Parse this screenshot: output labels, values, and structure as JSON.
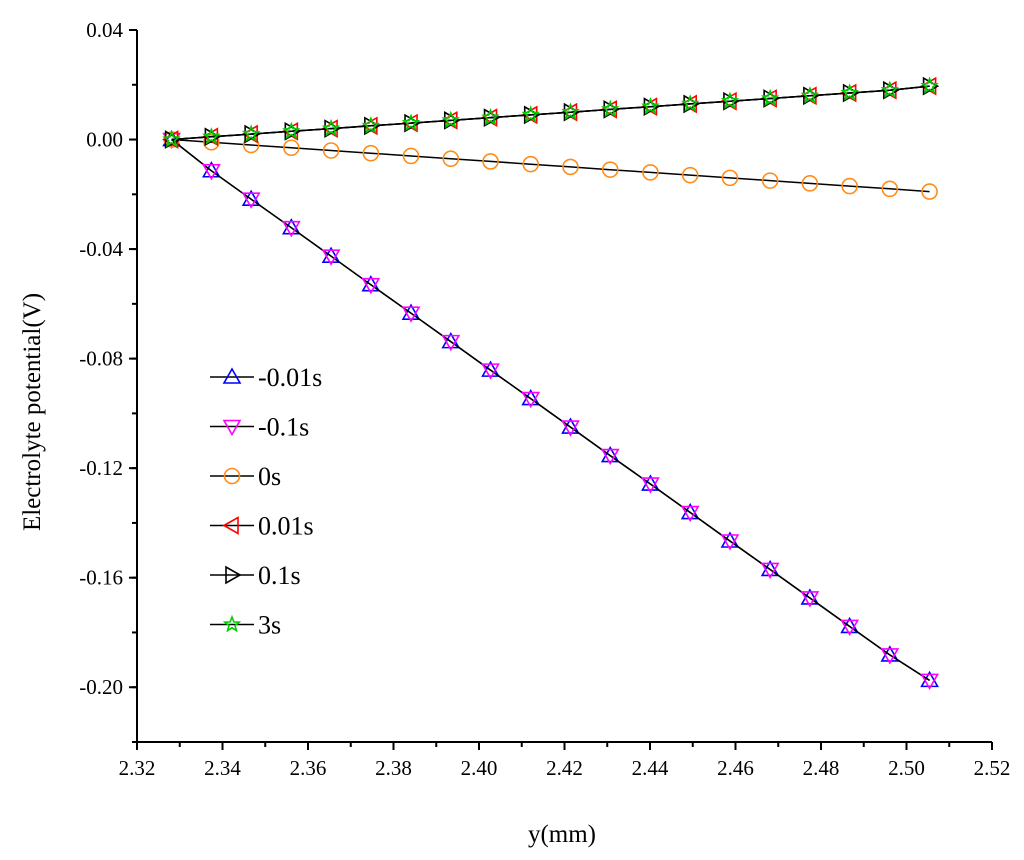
{
  "chart_data": {
    "type": "line",
    "title": "",
    "xlabel": "y(mm)",
    "ylabel": "Electrolyte potential(V)",
    "xlim": [
      2.32,
      2.52
    ],
    "ylim": [
      -0.22,
      0.04
    ],
    "xticks": [
      "2.32",
      "2.34",
      "2.36",
      "2.38",
      "2.40",
      "2.42",
      "2.44",
      "2.46",
      "2.48",
      "2.50",
      "2.52"
    ],
    "yticks": [
      "0.04",
      "0.00",
      "-0.04",
      "-0.08",
      "-0.12",
      "-0.16",
      "-0.20"
    ],
    "grid": false,
    "legend_position": "left-middle",
    "x": [
      2.3281,
      2.3374,
      2.3467,
      2.3561,
      2.3654,
      2.3747,
      2.3841,
      2.3934,
      2.4027,
      2.4121,
      2.4214,
      2.4307,
      2.4401,
      2.4494,
      2.4587,
      2.4681,
      2.4774,
      2.4867,
      2.4961,
      2.5054
    ],
    "series": [
      {
        "name": "-0.01s",
        "marker": "triangle-up",
        "color": "#0000ff",
        "values": [
          0,
          -0.0114,
          -0.0218,
          -0.0322,
          -0.0426,
          -0.053,
          -0.0634,
          -0.0738,
          -0.0842,
          -0.0946,
          -0.105,
          -0.1154,
          -0.1258,
          -0.1362,
          -0.1466,
          -0.157,
          -0.1674,
          -0.1778,
          -0.1882,
          -0.1975
        ]
      },
      {
        "name": "-0.1s",
        "marker": "triangle-down",
        "color": "#ff00ff",
        "values": [
          0,
          -0.0114,
          -0.0218,
          -0.0322,
          -0.0426,
          -0.053,
          -0.0634,
          -0.0738,
          -0.0842,
          -0.0946,
          -0.105,
          -0.1154,
          -0.1258,
          -0.1362,
          -0.1466,
          -0.157,
          -0.1674,
          -0.1778,
          -0.1882,
          -0.1975
        ]
      },
      {
        "name": "0s",
        "marker": "circle",
        "color": "#ff8c1a",
        "values": [
          0,
          -0.001,
          -0.002,
          -0.003,
          -0.004,
          -0.005,
          -0.006,
          -0.007,
          -0.008,
          -0.009,
          -0.01,
          -0.011,
          -0.012,
          -0.013,
          -0.014,
          -0.015,
          -0.016,
          -0.017,
          -0.018,
          -0.019
        ]
      },
      {
        "name": "0.01s",
        "marker": "triangle-left",
        "color": "#ff0000",
        "values": [
          0,
          0.001,
          0.002,
          0.003,
          0.004,
          0.005,
          0.006,
          0.007,
          0.008,
          0.009,
          0.01,
          0.011,
          0.012,
          0.013,
          0.014,
          0.015,
          0.016,
          0.017,
          0.018,
          0.0195
        ]
      },
      {
        "name": "0.1s",
        "marker": "triangle-right",
        "color": "#000000",
        "values": [
          0,
          0.001,
          0.002,
          0.003,
          0.004,
          0.005,
          0.006,
          0.007,
          0.008,
          0.009,
          0.01,
          0.011,
          0.012,
          0.013,
          0.014,
          0.015,
          0.016,
          0.017,
          0.018,
          0.0195
        ]
      },
      {
        "name": "3s",
        "marker": "star",
        "color": "#00cc00",
        "values": [
          0,
          0.001,
          0.002,
          0.003,
          0.004,
          0.005,
          0.006,
          0.007,
          0.008,
          0.009,
          0.01,
          0.011,
          0.012,
          0.013,
          0.014,
          0.015,
          0.016,
          0.017,
          0.018,
          0.0195
        ]
      }
    ]
  }
}
